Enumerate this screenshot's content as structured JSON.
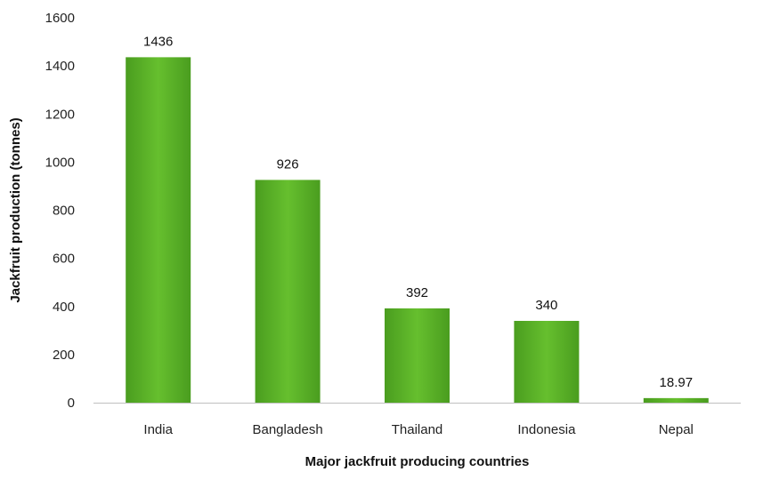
{
  "chart_data": {
    "type": "bar",
    "categories": [
      "India",
      "Bangladesh",
      "Thailand",
      "Indonesia",
      "Nepal"
    ],
    "values": [
      1436,
      926,
      392,
      340,
      18.97
    ],
    "value_labels": [
      "1436",
      "926",
      "392",
      "340",
      "18.97"
    ],
    "xlabel": "Major jackfruit producing countries",
    "ylabel": "Jackfruit production (tonnes)",
    "ylim": [
      0,
      1600
    ],
    "yticks": [
      0,
      200,
      400,
      600,
      800,
      1000,
      1200,
      1400,
      1600
    ],
    "grid": false,
    "bar_color": "#5ab22a"
  }
}
